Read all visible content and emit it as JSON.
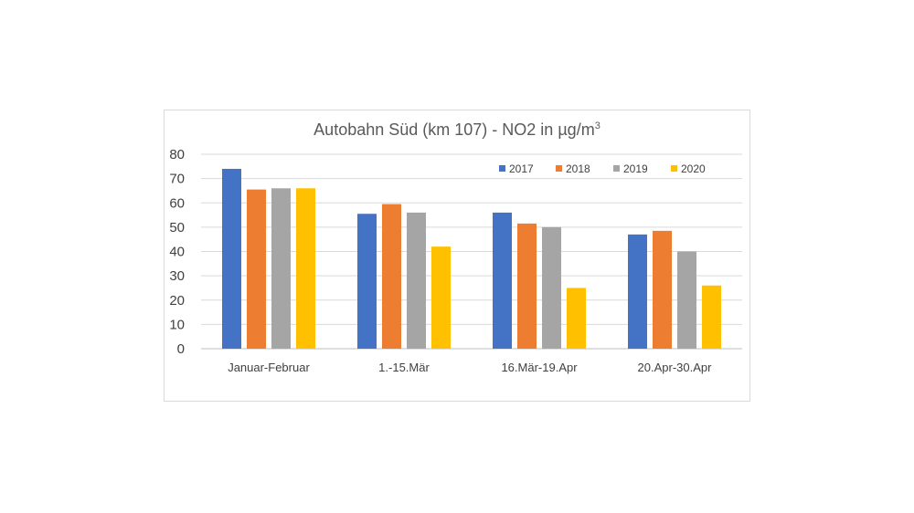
{
  "chart_data": {
    "type": "bar",
    "title_main": "Autobahn Süd (km 107) - NO2 in ",
    "title_unit": "µg/m",
    "title_sup": "3",
    "categories": [
      "Januar-Februar",
      "1.-15.Mär",
      "16.Mär-19.Apr",
      "20.Apr-30.Apr"
    ],
    "series": [
      {
        "name": "2017",
        "color": "#4472c4",
        "values": [
          74,
          55.5,
          56,
          47
        ]
      },
      {
        "name": "2018",
        "color": "#ed7d31",
        "values": [
          65.5,
          59.5,
          51.5,
          48.5
        ]
      },
      {
        "name": "2019",
        "color": "#a5a5a5",
        "values": [
          66,
          56,
          50,
          40
        ]
      },
      {
        "name": "2020",
        "color": "#ffc000",
        "values": [
          66,
          42,
          25,
          26
        ]
      }
    ],
    "ylim": [
      0,
      80
    ],
    "yticks": [
      "0",
      "10",
      "20",
      "30",
      "40",
      "50",
      "60",
      "70",
      "80"
    ],
    "grid": true,
    "legend": "top-right",
    "xlabel": "",
    "ylabel": ""
  }
}
